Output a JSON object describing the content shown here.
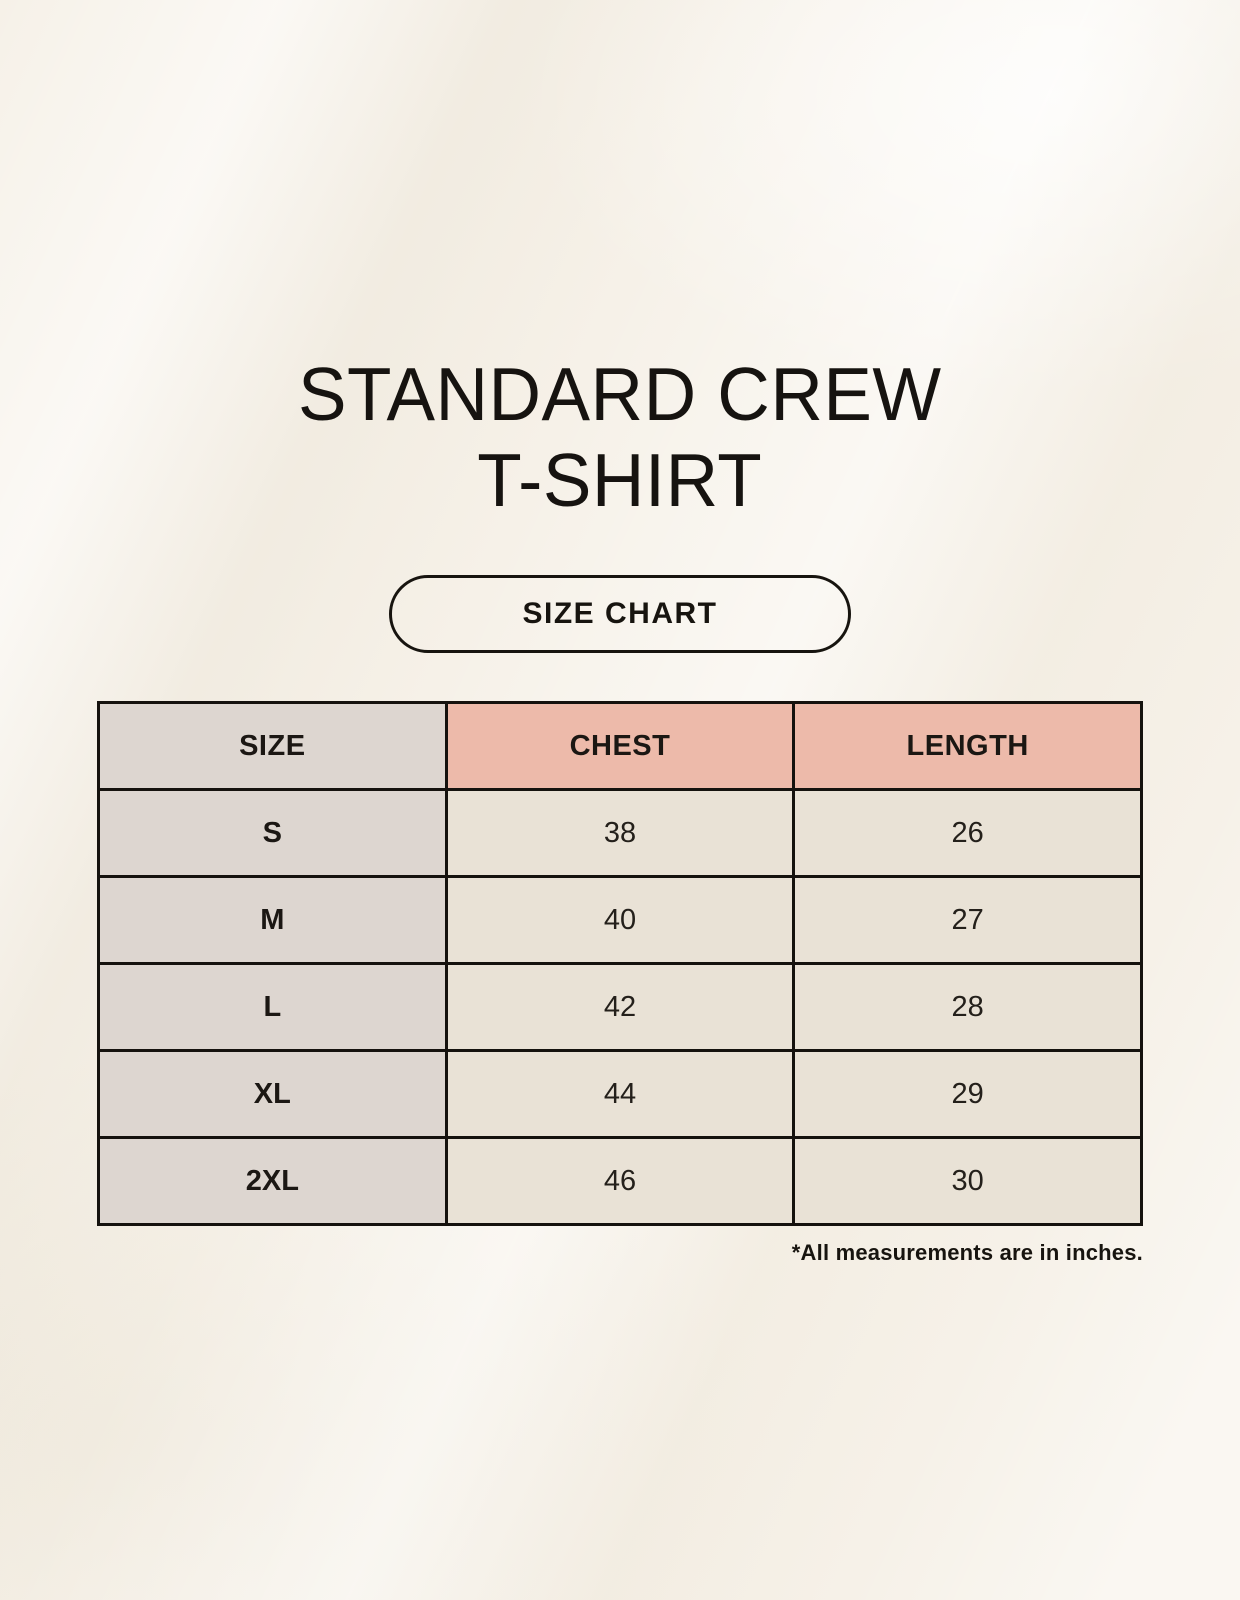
{
  "title": {
    "line1": "STANDARD CREW",
    "line2": "T-SHIRT"
  },
  "size_chart_button_label": "SIZE CHART",
  "table": {
    "headers": {
      "size": "SIZE",
      "chest": "CHEST",
      "length": "LENGTH"
    },
    "rows": [
      {
        "size": "S",
        "chest": "38",
        "length": "26"
      },
      {
        "size": "M",
        "chest": "40",
        "length": "27"
      },
      {
        "size": "L",
        "chest": "42",
        "length": "28"
      },
      {
        "size": "XL",
        "chest": "44",
        "length": "29"
      },
      {
        "size": "2XL",
        "chest": "46",
        "length": "30"
      }
    ]
  },
  "note": "*All measurements are in inches.",
  "colors": {
    "bg": "#f6f1e8",
    "gray_cell": "#ddd6d0",
    "pink_cell": "#edbaaa",
    "cream_cell": "#e9e2d6",
    "border": "#15120e"
  }
}
